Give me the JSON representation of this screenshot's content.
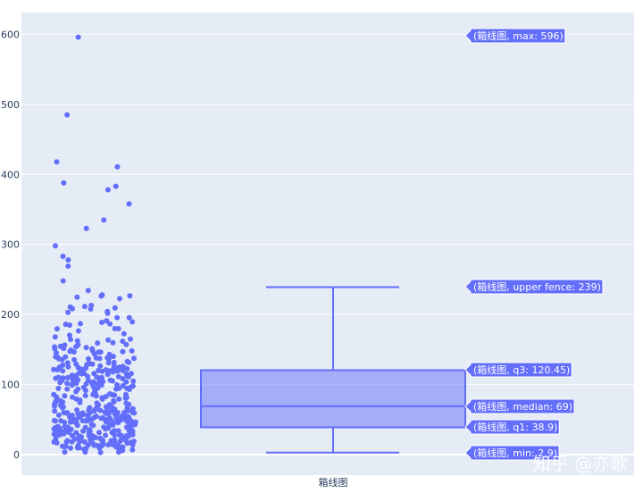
{
  "chart_data": {
    "type": "box",
    "category": "箱线图",
    "ylim": [
      -30,
      630
    ],
    "yticks": [
      0,
      100,
      200,
      300,
      400,
      500,
      600
    ],
    "box_color": "#636efa",
    "plot_bgcolor": "#e5ecf6",
    "points_shown": "all",
    "stats": {
      "min": 2.9,
      "q1": 38.9,
      "median": 69,
      "q3": 120.45,
      "upper_fence": 239,
      "max": 596
    },
    "hover_labels": [
      "(箱线图, max: 596)",
      "(箱线图, upper fence: 239)",
      "(箱线图, q3: 120.45)",
      "(箱线图, median: 69)",
      "(箱线图, q1: 38.9)",
      "(箱线图, min: 2.9)"
    ],
    "outliers": [
      596,
      485,
      418,
      411,
      388,
      383,
      378,
      358,
      335,
      323,
      298,
      283,
      278,
      269,
      248
    ]
  },
  "watermark": "知乎 @亦歌"
}
